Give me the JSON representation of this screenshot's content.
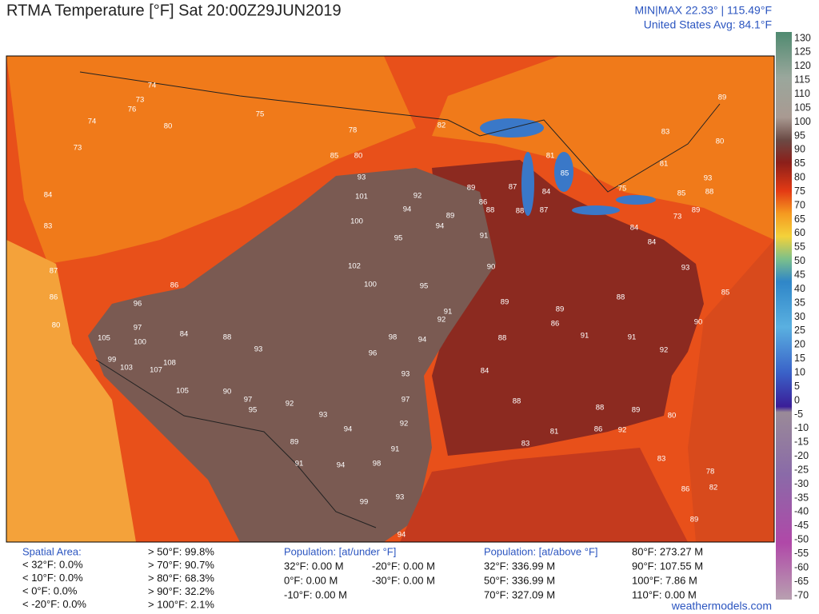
{
  "header": {
    "title": "RTMA Temperature [°F]  Sat 20:00Z29JUN2019",
    "minmax": "MIN|MAX 22.33°  |  115.49°F",
    "average": "United States Avg: 84.1°F"
  },
  "colorbar": {
    "ticks": [
      130,
      125,
      120,
      115,
      110,
      105,
      100,
      95,
      90,
      85,
      80,
      75,
      70,
      65,
      60,
      55,
      50,
      45,
      40,
      35,
      30,
      25,
      20,
      15,
      10,
      5,
      0,
      -5,
      -10,
      -15,
      -20,
      -25,
      -30,
      -35,
      -40,
      -45,
      -50,
      -55,
      -60,
      -65,
      -70
    ]
  },
  "stations": [
    74,
    76,
    73,
    80,
    74,
    73,
    84,
    83,
    87,
    86,
    80,
    105,
    99,
    103,
    107,
    108,
    105,
    100,
    97,
    96,
    86,
    84,
    88,
    93,
    90,
    97,
    95,
    92,
    93,
    94,
    89,
    91,
    94,
    99,
    93,
    94,
    98,
    91,
    92,
    97,
    93,
    96,
    98,
    94,
    92,
    91,
    95,
    100,
    102,
    101,
    93,
    100,
    95,
    94,
    89,
    94,
    92,
    75,
    85,
    80,
    78,
    82,
    88,
    91,
    90,
    89,
    88,
    84,
    88,
    83,
    81,
    88,
    86,
    92,
    89,
    80,
    83,
    86,
    82,
    89,
    78,
    93,
    85,
    90,
    92,
    91,
    91,
    86,
    89,
    88,
    84,
    73,
    89,
    88,
    80,
    89,
    83,
    81,
    85,
    75,
    84,
    85,
    81,
    87,
    89,
    86,
    88,
    87,
    93,
    84
  ],
  "footer": {
    "spatial_title": "Spatial Area:",
    "spatial_below": [
      "< 32°F: 0.0%",
      "< 10°F: 0.0%",
      "< 0°F: 0.0%",
      "< -20°F: 0.0%"
    ],
    "spatial_above": [
      "> 50°F: 99.8%",
      "> 70°F: 90.7%",
      "> 80°F: 68.3%",
      "> 90°F: 32.2%",
      "> 100°F: 2.1%"
    ],
    "pop_under_title": "Population: [at/under °F]",
    "pop_under": [
      "32°F: 0.00 M",
      "0°F: 0.00 M",
      "-10°F: 0.00 M",
      "-20°F: 0.00 M",
      "-30°F: 0.00 M"
    ],
    "pop_above_title": "Population: [at/above °F]",
    "pop_above": [
      "32°F: 336.99 M",
      "50°F: 336.99 M",
      "70°F: 327.09 M",
      "80°F: 273.27 M",
      "90°F: 107.55 M",
      "100°F: 7.86 M",
      "110°F: 0.00 M"
    ],
    "credit": "weathermodels.com"
  }
}
